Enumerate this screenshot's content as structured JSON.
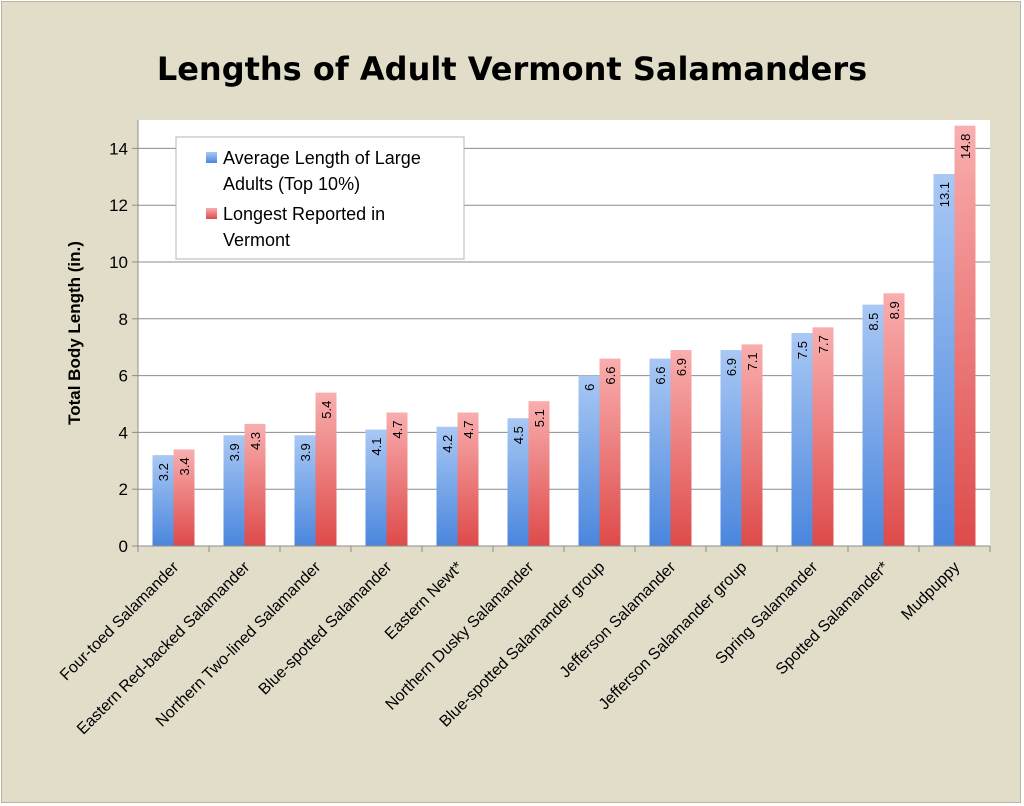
{
  "chart_data": {
    "type": "bar",
    "title": "Lengths of Adult Vermont Salamanders",
    "ylabel": "Total Body Length (in.)",
    "xlabel": "",
    "ylim": [
      0,
      15
    ],
    "yticks": [
      0,
      2,
      4,
      6,
      8,
      10,
      12,
      14
    ],
    "grid": true,
    "legend_position": "top-left",
    "categories": [
      "Four-toed Salamander",
      "Eastern Red-backed Salamander",
      "Northern Two-lined Salamander",
      "Blue-spotted Salamander",
      "Eastern Newt*",
      "Northern Dusky Salamander",
      "Blue-spotted Salamander group",
      "Jefferson Salamander",
      "Jefferson Salamander group",
      "Spring Salamander",
      "Spotted Salamander*",
      "Mudpuppy"
    ],
    "series": [
      {
        "name": "Average Length of Large Adults (Top 10%)",
        "legend_lines": [
          "Average Length of Large",
          "Adults (Top 10%)"
        ],
        "color": "#6fa0e6",
        "values": [
          3.2,
          3.9,
          3.9,
          4.1,
          4.2,
          4.5,
          6,
          6.6,
          6.9,
          7.5,
          8.5,
          13.1
        ]
      },
      {
        "name": "Longest Reported in Vermont",
        "legend_lines": [
          "Longest Reported in",
          "Vermont"
        ],
        "color": "#ee7b7b",
        "values": [
          3.4,
          4.3,
          5.4,
          4.7,
          4.7,
          5.1,
          6.6,
          6.9,
          7.1,
          7.7,
          8.9,
          14.8
        ]
      }
    ]
  }
}
